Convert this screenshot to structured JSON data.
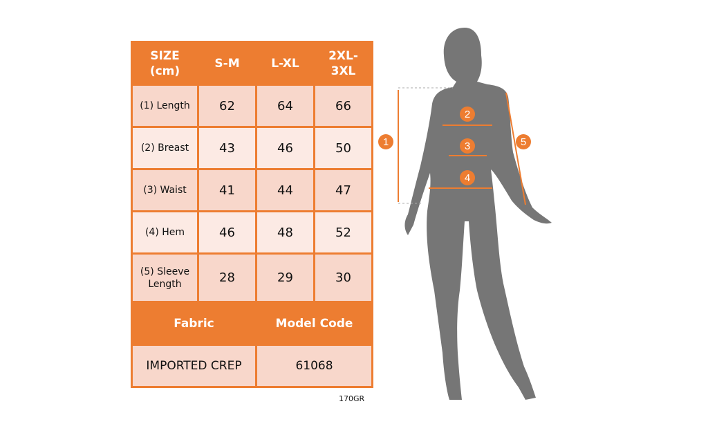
{
  "table": {
    "headers": [
      "SIZE (cm)",
      "S-M",
      "L-XL",
      "2XL-3XL"
    ],
    "header_lines": {
      "size": [
        "SIZE",
        "(cm)"
      ],
      "last": [
        "2XL-",
        "3XL"
      ]
    },
    "rows": [
      {
        "label": "(1) Length",
        "values": [
          "62",
          "64",
          "66"
        ]
      },
      {
        "label": "(2) Breast",
        "values": [
          "43",
          "46",
          "50"
        ]
      },
      {
        "label": "(3) Waist",
        "values": [
          "41",
          "44",
          "47"
        ]
      },
      {
        "label": "(4) Hem",
        "values": [
          "46",
          "48",
          "52"
        ]
      },
      {
        "label": "(5) Sleeve Length",
        "label_lines": [
          "(5) Sleeve",
          "Length"
        ],
        "values": [
          "28",
          "29",
          "30"
        ]
      }
    ],
    "footer_headers": [
      "Fabric",
      "Model Code"
    ],
    "footer_values": [
      "IMPORTED CREP",
      "61068"
    ]
  },
  "weight": "170GR",
  "figure": {
    "markers": [
      "1",
      "2",
      "3",
      "4",
      "5"
    ]
  },
  "colors": {
    "accent": "#ED7D31",
    "row_dark": "#F8D7CB",
    "row_light": "#FCEAE4",
    "silhouette": "#767676"
  }
}
